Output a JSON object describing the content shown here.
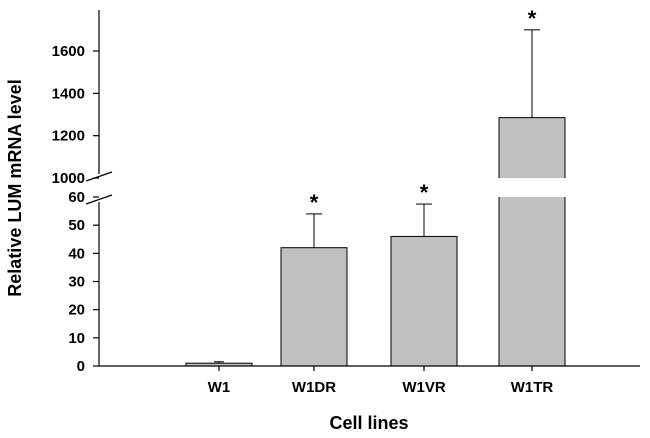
{
  "chart_data": {
    "type": "bar",
    "xlabel": "Cell lines",
    "ylabel": "Relative LUM mRNA level",
    "categories": [
      "W1",
      "W1DR",
      "W1VR",
      "W1TR"
    ],
    "values": [
      1,
      42,
      46,
      1285
    ],
    "error_plus": [
      0.5,
      12,
      11.5,
      415
    ],
    "significance": [
      "",
      "*",
      "*",
      "*"
    ],
    "axis_break": {
      "lower_segment": [
        0,
        60
      ],
      "upper_segment": [
        1000,
        1700
      ]
    },
    "lower_ticks": [
      "0",
      "10",
      "20",
      "30",
      "40",
      "50",
      "60"
    ],
    "upper_ticks": [
      "1000",
      "1200",
      "1400",
      "1600"
    ],
    "bar_color": "#c0c0c0",
    "grid": false
  }
}
